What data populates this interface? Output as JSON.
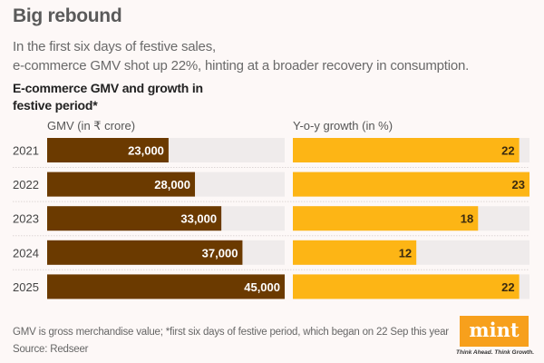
{
  "header": {
    "title": "Big rebound",
    "subtitle_line1": "In the first six days of festive sales,",
    "subtitle_line2": "e-commerce GMV shot up 22%, hinting at a broader recovery in consumption.",
    "chart_title_line1": "E-commerce GMV and growth in",
    "chart_title_line2": "festive period*"
  },
  "chart_data": {
    "type": "bar",
    "orientation": "horizontal",
    "categories": [
      "2021",
      "2022",
      "2023",
      "2024",
      "2025"
    ],
    "series": [
      {
        "name": "GMV (in ₹ crore)",
        "values": [
          23000,
          28000,
          33000,
          37000,
          45000
        ],
        "labels": [
          "23,000",
          "28,000",
          "33,000",
          "37,000",
          "45,000"
        ],
        "color": "#6b3a00",
        "label_color": "#ffffff",
        "xlim": [
          0,
          45000
        ]
      },
      {
        "name": "Y-o-y growth (in %)",
        "values": [
          22,
          23,
          18,
          12,
          22
        ],
        "labels": [
          "22",
          "23",
          "18",
          "12",
          "22"
        ],
        "color": "#fdb515",
        "label_color": "#3a2a10",
        "xlim": [
          0,
          23
        ]
      }
    ],
    "track_color": "#efebeb",
    "grid": false
  },
  "footer": {
    "note": "GMV is gross merchandise value; *first six days of festive period, which began on 22 Sep this year",
    "source": "Source: Redseer",
    "logo_text": "mint",
    "tagline": "Think Ahead. Think Growth.",
    "logo_color": "#f7a01c"
  }
}
